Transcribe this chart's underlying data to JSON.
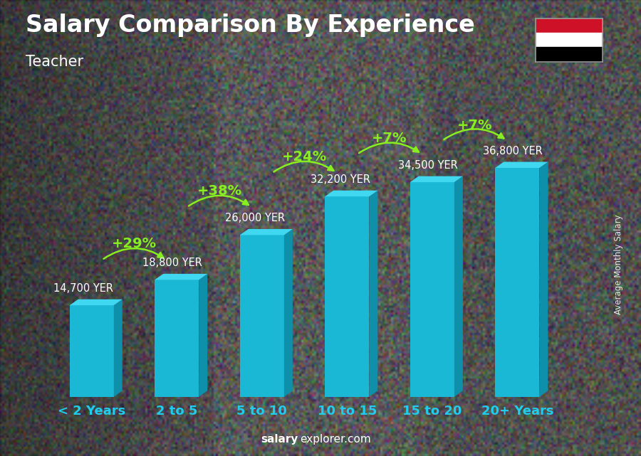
{
  "title": "Salary Comparison By Experience",
  "subtitle": "Teacher",
  "categories": [
    "< 2 Years",
    "2 to 5",
    "5 to 10",
    "10 to 15",
    "15 to 20",
    "20+ Years"
  ],
  "values": [
    14700,
    18800,
    26000,
    32200,
    34500,
    36800
  ],
  "labels": [
    "14,700 YER",
    "18,800 YER",
    "26,000 YER",
    "32,200 YER",
    "34,500 YER",
    "36,800 YER"
  ],
  "pct_labels": [
    "+29%",
    "+38%",
    "+24%",
    "+7%",
    "+7%"
  ],
  "bar_color_front": "#1ab8d4",
  "bar_color_top": "#40d8f0",
  "bar_color_side": "#0e8faa",
  "title_color": "#ffffff",
  "subtitle_color": "#ffffff",
  "label_color": "#ffffff",
  "pct_color": "#88ee22",
  "xlabel_color": "#22ccee",
  "watermark_salary": "salary",
  "watermark_rest": "explorer.com",
  "ylabel_text": "Average Monthly Salary",
  "title_fontsize": 24,
  "subtitle_fontsize": 15,
  "label_fontsize": 10.5,
  "pct_fontsize": 14,
  "xlabel_fontsize": 13,
  "ylim": [
    0,
    44000
  ],
  "bg_color": "#6a6a6a",
  "flag_red": "#CE1126",
  "flag_white": "#FFFFFF",
  "flag_black": "#000000"
}
